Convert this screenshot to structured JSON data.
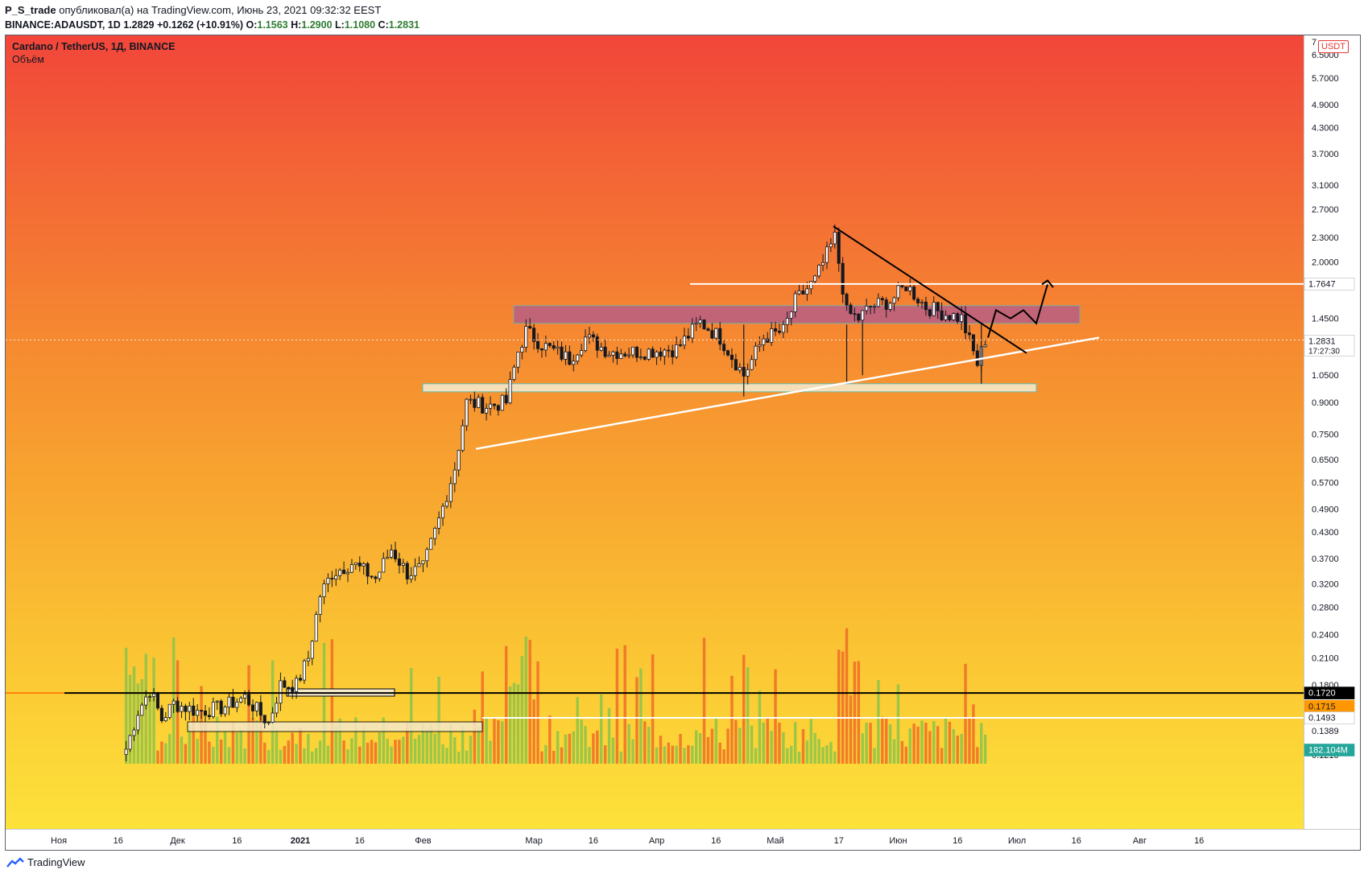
{
  "header": {
    "user": "P_S_trade",
    "published_text": "опубликовал(а) на TradingView.com, Июнь 23, 2021 09:32:32 EEST",
    "symbol_line": "BINANCE:ADAUSDT, 1D",
    "last": "1.2829",
    "change": "+0.1262 (+10.91%)",
    "o_label": "O:",
    "o": "1.1563",
    "h_label": "H:",
    "h": "1.2900",
    "l_label": "L:",
    "l": "1.1080",
    "c_label": "C:",
    "c": "1.2831"
  },
  "legend": {
    "title": "Cardano / TetherUS, 1Д, BINANCE",
    "volume_label": "Объём"
  },
  "currency_badge": "USDT",
  "footer": {
    "brand": "TradingView"
  },
  "colors": {
    "up": "#8bc34a",
    "down": "#ef6c28",
    "candle": "#131722",
    "resistance_zone": "#b05a8f",
    "support_zone": "#f5e8c8",
    "white_line": "#ffffff",
    "black_line": "#000000"
  },
  "chart_data": {
    "type": "candlestick",
    "title": "Cardano / TetherUS, 1Д, BINANCE",
    "scale": "log",
    "ylim": [
      0.115,
      7.0
    ],
    "y_ticks": [
      "7",
      "6.5000",
      "5.7000",
      "4.9000",
      "4.3000",
      "3.7000",
      "3.1000",
      "2.7000",
      "2.3000",
      "2.0000",
      "1.7600",
      "1.4500",
      "1.2831",
      "1.0500",
      "0.9000",
      "0.7500",
      "0.6500",
      "0.5700",
      "0.4900",
      "0.4300",
      "0.3700",
      "0.3200",
      "0.2800",
      "0.2400",
      "0.2100",
      "0.1800",
      "0.1720",
      "0.1715",
      "0.1493",
      "0.1389",
      "0.1210"
    ],
    "x_ticks": [
      "Ноя",
      "16",
      "Дек",
      "16",
      "2021",
      "16",
      "Фев",
      "Мар",
      "16",
      "Апр",
      "16",
      "Май",
      "17",
      "Июн",
      "16",
      "Июл",
      "16",
      "Авг",
      "16"
    ],
    "price_labels": [
      {
        "value": "1.7647",
        "style": "white"
      },
      {
        "value": "1.2831",
        "sub": "17:27:30",
        "style": "white"
      },
      {
        "value": "0.1720",
        "style": "black"
      },
      {
        "value": "0.1715",
        "style": "orange"
      },
      {
        "value": "0.1493",
        "style": "white"
      },
      {
        "value": "182.104M",
        "style": "teal"
      }
    ],
    "key_levels": [
      1.7647,
      1.2831,
      0.172,
      0.1493
    ],
    "resistance_zone": [
      1.41,
      1.56
    ],
    "support_zone": [
      0.955,
      1.0
    ],
    "price_path": [
      {
        "date": "2020-11-18",
        "close": 0.125
      },
      {
        "date": "2020-11-21",
        "close": 0.155
      },
      {
        "date": "2020-11-24",
        "close": 0.175
      },
      {
        "date": "2020-11-27",
        "close": 0.148
      },
      {
        "date": "2020-11-30",
        "close": 0.162
      },
      {
        "date": "2020-12-06",
        "close": 0.155
      },
      {
        "date": "2020-12-12",
        "close": 0.158
      },
      {
        "date": "2020-12-18",
        "close": 0.168
      },
      {
        "date": "2020-12-24",
        "close": 0.145
      },
      {
        "date": "2020-12-27",
        "close": 0.18
      },
      {
        "date": "2020-12-31",
        "close": 0.18
      },
      {
        "date": "2021-01-03",
        "close": 0.21
      },
      {
        "date": "2021-01-06",
        "close": 0.3
      },
      {
        "date": "2021-01-09",
        "close": 0.34
      },
      {
        "date": "2021-01-14",
        "close": 0.36
      },
      {
        "date": "2021-01-20",
        "close": 0.33
      },
      {
        "date": "2021-01-24",
        "close": 0.39
      },
      {
        "date": "2021-01-28",
        "close": 0.34
      },
      {
        "date": "2021-02-01",
        "close": 0.35
      },
      {
        "date": "2021-02-05",
        "close": 0.46
      },
      {
        "date": "2021-02-09",
        "close": 0.62
      },
      {
        "date": "2021-02-12",
        "close": 0.9
      },
      {
        "date": "2021-02-17",
        "close": 0.88
      },
      {
        "date": "2021-02-22",
        "close": 0.9
      },
      {
        "date": "2021-02-25",
        "close": 1.2
      },
      {
        "date": "2021-02-27",
        "close": 1.35
      },
      {
        "date": "2021-03-03",
        "close": 1.25
      },
      {
        "date": "2021-03-10",
        "close": 1.15
      },
      {
        "date": "2021-03-14",
        "close": 1.3
      },
      {
        "date": "2021-03-20",
        "close": 1.2
      },
      {
        "date": "2021-03-28",
        "close": 1.2
      },
      {
        "date": "2021-04-06",
        "close": 1.22
      },
      {
        "date": "2021-04-12",
        "close": 1.42
      },
      {
        "date": "2021-04-17",
        "close": 1.3
      },
      {
        "date": "2021-04-23",
        "close": 1.05
      },
      {
        "date": "2021-04-28",
        "close": 1.3
      },
      {
        "date": "2021-05-03",
        "close": 1.35
      },
      {
        "date": "2021-05-06",
        "close": 1.6
      },
      {
        "date": "2021-05-11",
        "close": 1.8
      },
      {
        "date": "2021-05-16",
        "close": 2.3
      },
      {
        "date": "2021-05-19",
        "close": 1.5
      },
      {
        "date": "2021-05-22",
        "close": 1.45
      },
      {
        "date": "2021-05-25",
        "close": 1.55
      },
      {
        "date": "2021-05-30",
        "close": 1.6
      },
      {
        "date": "2021-06-03",
        "close": 1.75
      },
      {
        "date": "2021-06-08",
        "close": 1.55
      },
      {
        "date": "2021-06-12",
        "close": 1.5
      },
      {
        "date": "2021-06-17",
        "close": 1.45
      },
      {
        "date": "2021-06-21",
        "close": 1.12
      },
      {
        "date": "2021-06-23",
        "close": 1.2831
      }
    ]
  }
}
